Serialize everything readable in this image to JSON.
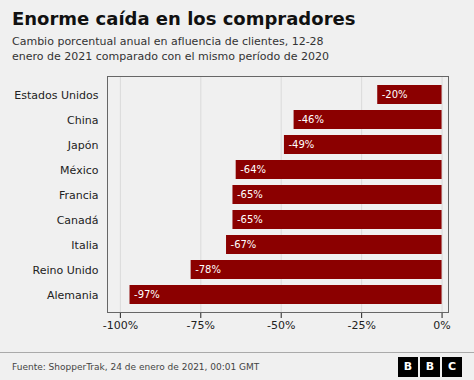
{
  "chart_data": {
    "type": "bar",
    "orientation": "horizontal",
    "title": "Enorme caída en los compradores",
    "subtitle": "Cambio porcentual anual en afluencia de clientes, 12-28\nenero de 2021 comparado con el mismo período de 2020",
    "caption": "Fuente: ShopperTrak, 24 de enero de 2021, 00:01 GMT",
    "annotations": [
      "BBC"
    ],
    "categories": [
      "Estados Unidos",
      "China",
      "Japón",
      "México",
      "Francia",
      "Canadá",
      "Italia",
      "Reino Unido",
      "Alemania"
    ],
    "values": [
      -20,
      -46,
      -49,
      -64,
      -65,
      -65,
      -67,
      -78,
      -97
    ],
    "value_labels": [
      "-20%",
      "-46%",
      "-49%",
      "-64%",
      "-65%",
      "-65%",
      "-67%",
      "-78%",
      "-97%"
    ],
    "data_labels": true,
    "color": "#8B0000",
    "xlim": [
      -104,
      2
    ],
    "xticks": [
      {
        "value": -100,
        "label": "-100%"
      },
      {
        "value": -75,
        "label": "-75%"
      },
      {
        "value": -50,
        "label": "-50%"
      },
      {
        "value": -25,
        "label": "-25%"
      },
      {
        "value": 0,
        "label": "0%"
      }
    ],
    "grid": true
  }
}
